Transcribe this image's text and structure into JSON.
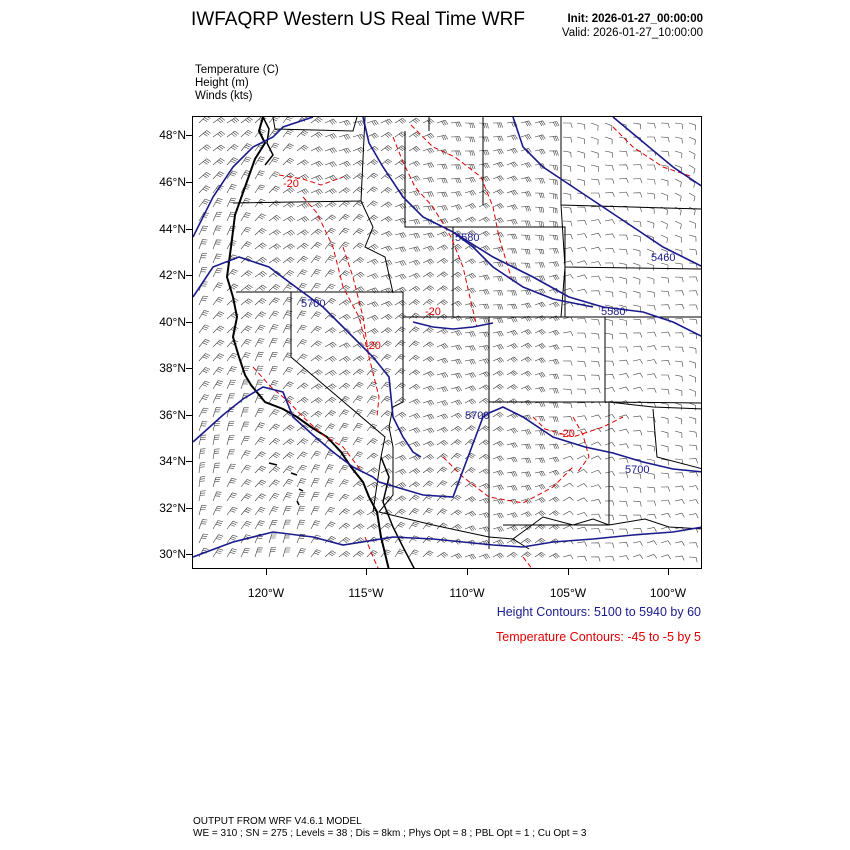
{
  "header": {
    "title": "IWFAQRP Western US Real Time WRF",
    "init": "Init: 2026-01-27_00:00:00",
    "valid": "Valid: 2026-01-27_10:00:00"
  },
  "fields": [
    "Temperature   (C)",
    "Height   (m)",
    "Winds   (kts)"
  ],
  "axes": {
    "lat_labels": [
      "48°N",
      "46°N",
      "44°N",
      "42°N",
      "40°N",
      "38°N",
      "36°N",
      "34°N",
      "32°N",
      "30°N"
    ],
    "lon_labels": [
      "120°W",
      "115°W",
      "110°W",
      "105°W",
      "100°W"
    ]
  },
  "contour_labels": {
    "height": [
      "5580",
      "5700",
      "5580",
      "5460",
      "5700",
      "5700"
    ],
    "temperature": [
      "-20",
      "-20",
      "-20",
      "-20"
    ]
  },
  "captions": {
    "height": "Height Contours: 5100 to 5940 by 60",
    "temperature": "Temperature Contours: -45 to -5 by 5"
  },
  "footer": {
    "line1": "OUTPUT FROM WRF V4.6.1 MODEL",
    "line2": "WE = 310 ; SN = 275 ; Levels = 38 ; Dis = 8km ; Phys Opt = 8 ; PBL Opt = 1 ; Cu Opt = 3"
  },
  "colors": {
    "height": "#1a1a8c",
    "temperature": "#e00000",
    "wind": "#000000"
  }
}
